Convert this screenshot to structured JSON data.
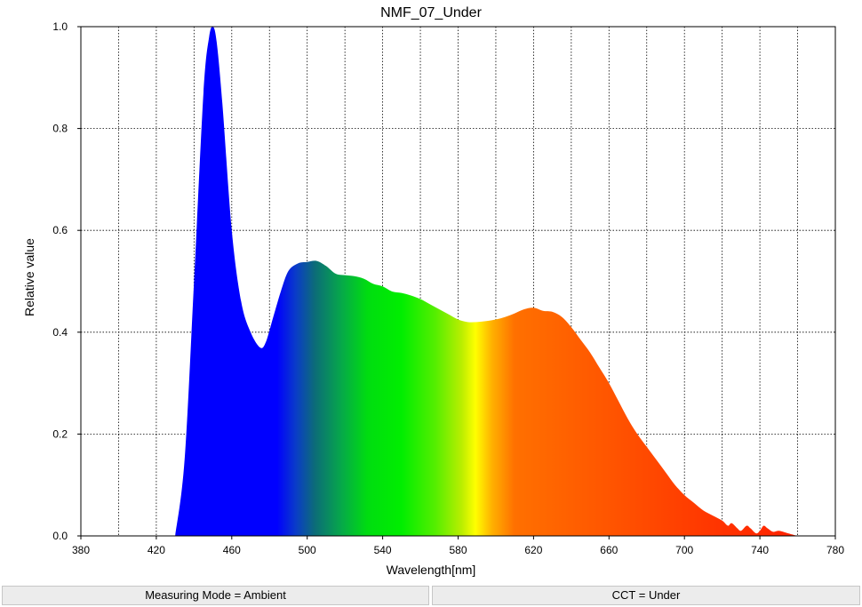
{
  "chart_data": {
    "type": "area",
    "title": "NMF_07_Under",
    "xlabel": "Wavelength[nm]",
    "ylabel": "Relative value",
    "xlim": [
      380,
      780
    ],
    "ylim": [
      0,
      1.0
    ],
    "x_ticks": [
      "380",
      "420",
      "460",
      "500",
      "540",
      "580",
      "620",
      "660",
      "700",
      "740",
      "780"
    ],
    "y_ticks": [
      "0.0",
      "0.2",
      "0.4",
      "0.6",
      "0.8",
      "1.0"
    ],
    "grid": true,
    "x": [
      430,
      435,
      440,
      445,
      448,
      450,
      452,
      455,
      460,
      465,
      470,
      475,
      478,
      482,
      486,
      490,
      495,
      500,
      505,
      510,
      515,
      520,
      525,
      530,
      535,
      540,
      545,
      550,
      555,
      560,
      565,
      570,
      575,
      580,
      585,
      590,
      595,
      600,
      605,
      610,
      615,
      620,
      625,
      630,
      635,
      640,
      645,
      650,
      655,
      660,
      665,
      670,
      675,
      680,
      685,
      690,
      695,
      700,
      705,
      710,
      715,
      720,
      723,
      725,
      728,
      730,
      733,
      735,
      738,
      740,
      742,
      744,
      747,
      750,
      755,
      760
    ],
    "y": [
      0.0,
      0.15,
      0.5,
      0.87,
      0.98,
      1.0,
      0.97,
      0.85,
      0.6,
      0.46,
      0.4,
      0.37,
      0.38,
      0.43,
      0.48,
      0.52,
      0.535,
      0.538,
      0.54,
      0.53,
      0.515,
      0.512,
      0.51,
      0.505,
      0.495,
      0.49,
      0.48,
      0.477,
      0.472,
      0.465,
      0.455,
      0.445,
      0.435,
      0.425,
      0.42,
      0.42,
      0.422,
      0.425,
      0.43,
      0.437,
      0.445,
      0.448,
      0.442,
      0.44,
      0.43,
      0.41,
      0.385,
      0.36,
      0.33,
      0.3,
      0.265,
      0.23,
      0.2,
      0.175,
      0.15,
      0.125,
      0.1,
      0.08,
      0.065,
      0.05,
      0.04,
      0.03,
      0.02,
      0.025,
      0.015,
      0.01,
      0.02,
      0.015,
      0.005,
      0.01,
      0.02,
      0.015,
      0.008,
      0.01,
      0.005,
      0.0
    ]
  },
  "status": {
    "left": "Measuring Mode = Ambient",
    "right": "CCT = Under"
  }
}
